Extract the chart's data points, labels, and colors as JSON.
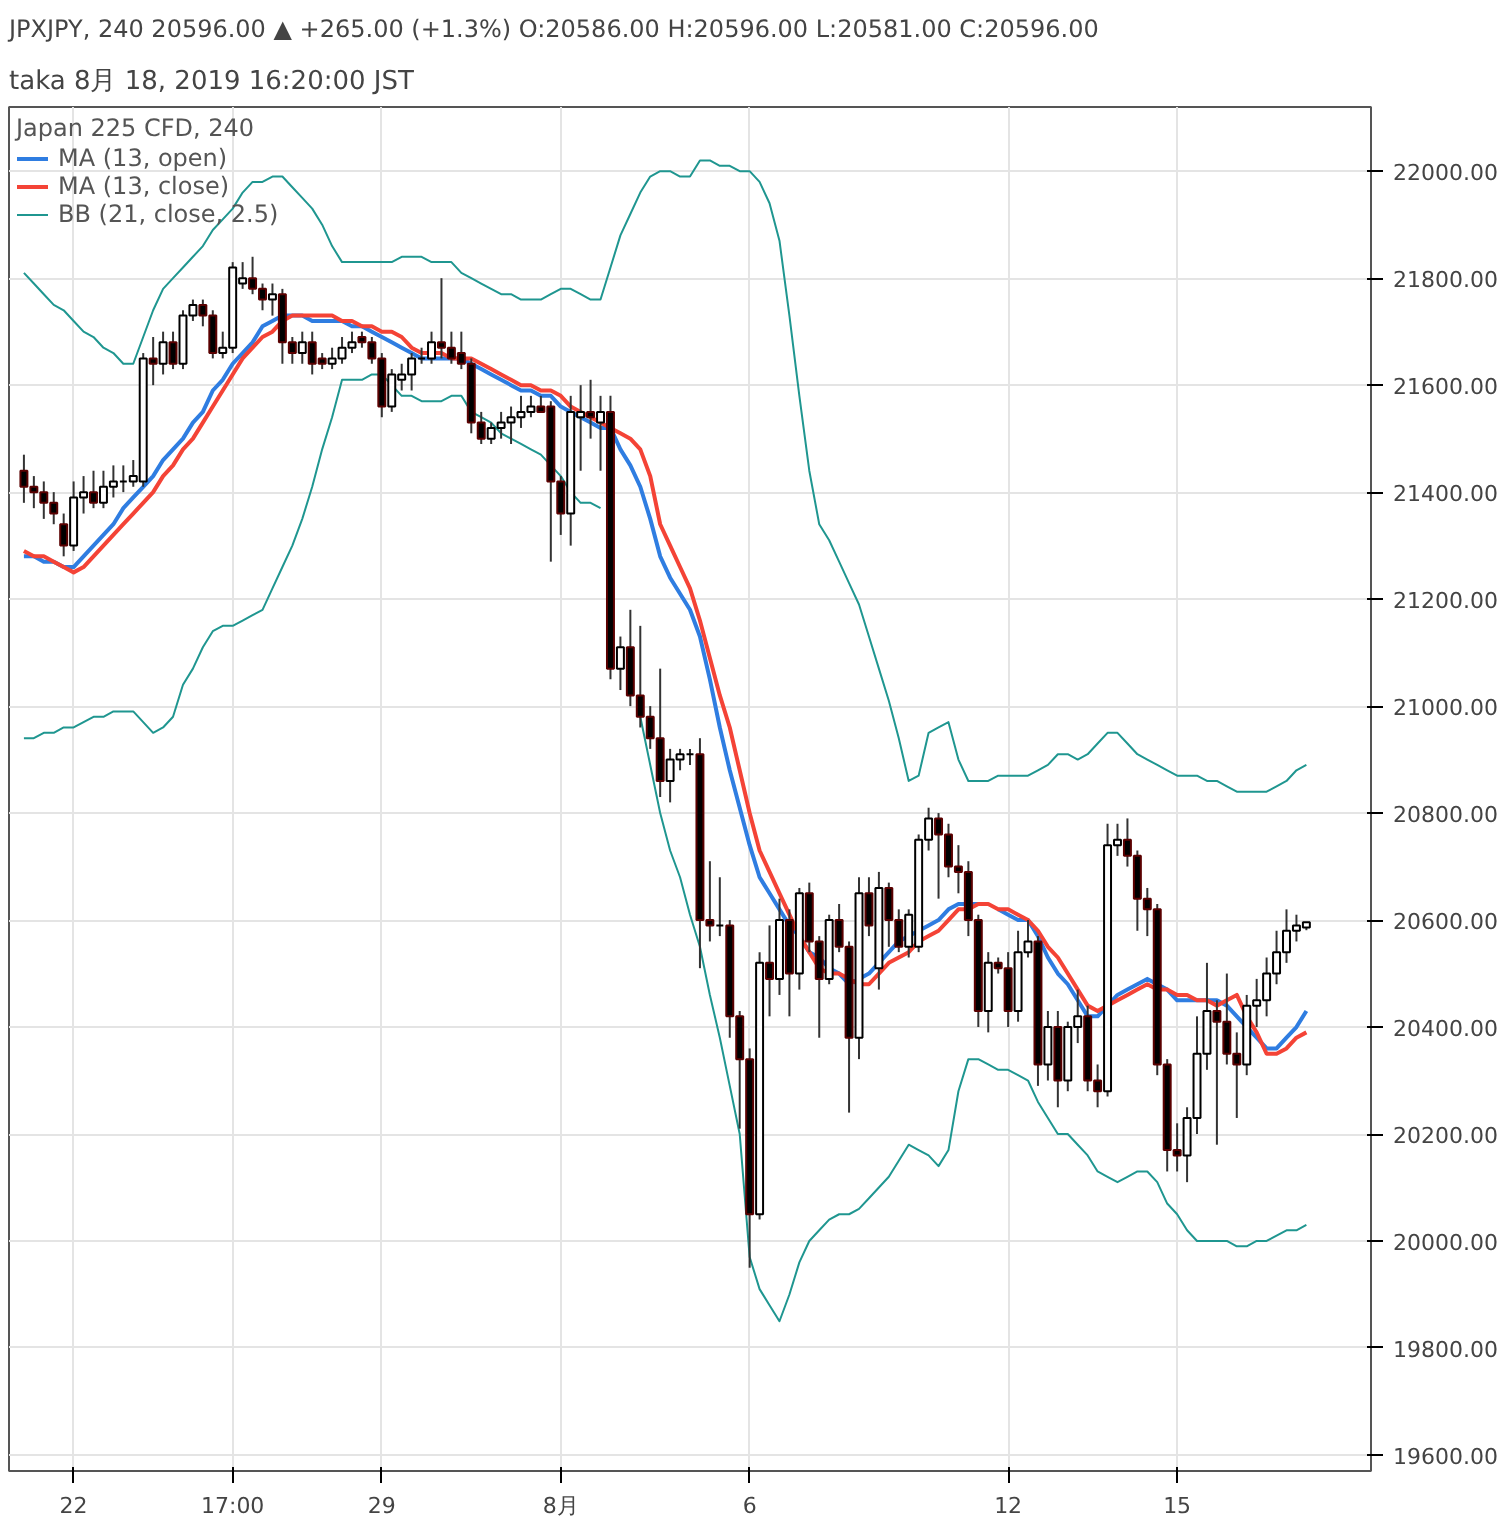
{
  "chart_data": {
    "type": "candlestick",
    "title": "taka 8月 18, 2019 16:20:00 JST",
    "subtitle": "JPXJPY, 240 20596.00 ▲ +265.00 (+1.3%) O:20586.00 H:20596.00 L:20581.00 C:20596.00",
    "legend_title": "Japan 225 CFD, 240",
    "categories": [
      null,
      null,
      null,
      null,
      null,
      "22",
      null,
      null,
      null,
      null,
      null,
      null,
      null,
      null,
      null,
      null,
      null,
      null,
      null,
      null,
      null,
      "17:00",
      null,
      null,
      null,
      null,
      null,
      null,
      null,
      null,
      null,
      null,
      null,
      null,
      null,
      null,
      "29",
      null,
      null,
      null,
      null,
      null,
      null,
      null,
      null,
      null,
      null,
      null,
      null,
      null,
      null,
      null,
      null,
      null,
      "8月",
      null,
      null,
      null,
      null,
      null,
      null,
      null,
      null,
      null,
      null,
      null,
      null,
      null,
      null,
      null,
      null,
      null,
      null,
      "6",
      null,
      null,
      null,
      null,
      null,
      null,
      null,
      null,
      null,
      null,
      null,
      null,
      null,
      null,
      null,
      null,
      null,
      null,
      null,
      null,
      null,
      null,
      null,
      null,
      null,
      "12",
      null,
      null,
      null,
      null,
      null,
      null,
      null,
      null,
      null,
      null,
      null,
      null,
      null,
      null,
      null,
      null,
      "15",
      null,
      null,
      null,
      null,
      null,
      null,
      null,
      null,
      null,
      null,
      null,
      null,
      null
    ],
    "ohlc": [
      [
        21440,
        21470,
        21380,
        21410
      ],
      [
        21410,
        21430,
        21370,
        21400
      ],
      [
        21400,
        21420,
        21350,
        21380
      ],
      [
        21380,
        21400,
        21340,
        21360
      ],
      [
        21340,
        21360,
        21280,
        21300
      ],
      [
        21300,
        21420,
        21290,
        21390
      ],
      [
        21390,
        21430,
        21360,
        21400
      ],
      [
        21400,
        21440,
        21370,
        21380
      ],
      [
        21380,
        21440,
        21370,
        21410
      ],
      [
        21410,
        21450,
        21390,
        21420
      ],
      [
        21420,
        21450,
        21400,
        21420
      ],
      [
        21420,
        21460,
        21410,
        21430
      ],
      [
        21420,
        21660,
        21410,
        21650
      ],
      [
        21650,
        21690,
        21600,
        21640
      ],
      [
        21640,
        21700,
        21620,
        21680
      ],
      [
        21680,
        21700,
        21630,
        21640
      ],
      [
        21640,
        21740,
        21630,
        21730
      ],
      [
        21730,
        21760,
        21720,
        21750
      ],
      [
        21750,
        21760,
        21710,
        21730
      ],
      [
        21730,
        21740,
        21650,
        21660
      ],
      [
        21660,
        21700,
        21650,
        21670
      ],
      [
        21670,
        21830,
        21660,
        21820
      ],
      [
        21790,
        21830,
        21780,
        21800
      ],
      [
        21800,
        21840,
        21770,
        21780
      ],
      [
        21780,
        21790,
        21740,
        21760
      ],
      [
        21760,
        21790,
        21730,
        21770
      ],
      [
        21770,
        21780,
        21640,
        21680
      ],
      [
        21680,
        21690,
        21640,
        21660
      ],
      [
        21660,
        21700,
        21640,
        21680
      ],
      [
        21680,
        21700,
        21620,
        21640
      ],
      [
        21650,
        21660,
        21630,
        21640
      ],
      [
        21640,
        21670,
        21630,
        21650
      ],
      [
        21650,
        21690,
        21640,
        21670
      ],
      [
        21670,
        21700,
        21660,
        21680
      ],
      [
        21690,
        21700,
        21670,
        21680
      ],
      [
        21680,
        21690,
        21640,
        21650
      ],
      [
        21650,
        21660,
        21540,
        21560
      ],
      [
        21560,
        21630,
        21550,
        21620
      ],
      [
        21610,
        21640,
        21590,
        21620
      ],
      [
        21620,
        21660,
        21590,
        21650
      ],
      [
        21650,
        21670,
        21640,
        21650
      ],
      [
        21650,
        21700,
        21640,
        21680
      ],
      [
        21680,
        21800,
        21650,
        21670
      ],
      [
        21670,
        21700,
        21640,
        21650
      ],
      [
        21660,
        21700,
        21630,
        21640
      ],
      [
        21640,
        21650,
        21510,
        21530
      ],
      [
        21530,
        21550,
        21490,
        21500
      ],
      [
        21500,
        21530,
        21490,
        21520
      ],
      [
        21520,
        21550,
        21500,
        21530
      ],
      [
        21530,
        21560,
        21490,
        21540
      ],
      [
        21540,
        21580,
        21520,
        21550
      ],
      [
        21550,
        21580,
        21540,
        21560
      ],
      [
        21560,
        21580,
        21550,
        21550
      ],
      [
        21560,
        21570,
        21270,
        21420
      ],
      [
        21420,
        21430,
        21320,
        21360
      ],
      [
        21360,
        21580,
        21300,
        21550
      ],
      [
        21540,
        21600,
        21440,
        21550
      ],
      [
        21550,
        21610,
        21500,
        21540
      ],
      [
        21530,
        21580,
        21440,
        21550
      ],
      [
        21550,
        21580,
        21050,
        21070
      ],
      [
        21070,
        21130,
        21030,
        21110
      ],
      [
        21110,
        21180,
        21000,
        21020
      ],
      [
        21020,
        21150,
        20960,
        20980
      ],
      [
        20980,
        21000,
        20920,
        20940
      ],
      [
        20940,
        21070,
        20830,
        20860
      ],
      [
        20860,
        20920,
        20820,
        20900
      ],
      [
        20900,
        20920,
        20880,
        20910
      ],
      [
        20910,
        20920,
        20890,
        20910
      ],
      [
        20910,
        20940,
        20510,
        20600
      ],
      [
        20600,
        20710,
        20560,
        20590
      ],
      [
        20590,
        20680,
        20570,
        20590
      ],
      [
        20590,
        20600,
        20380,
        20420
      ],
      [
        20420,
        20430,
        20210,
        20340
      ],
      [
        20340,
        20360,
        19950,
        20050
      ],
      [
        20050,
        20540,
        20040,
        20520
      ],
      [
        20520,
        20590,
        20420,
        20490
      ],
      [
        20490,
        20640,
        20460,
        20600
      ],
      [
        20600,
        20620,
        20420,
        20500
      ],
      [
        20500,
        20660,
        20470,
        20650
      ],
      [
        20650,
        20670,
        20540,
        20560
      ],
      [
        20560,
        20570,
        20380,
        20490
      ],
      [
        20490,
        20610,
        20480,
        20600
      ],
      [
        20600,
        20630,
        20540,
        20550
      ],
      [
        20550,
        20560,
        20240,
        20380
      ],
      [
        20380,
        20680,
        20340,
        20650
      ],
      [
        20650,
        20680,
        20570,
        20590
      ],
      [
        20510,
        20690,
        20470,
        20660
      ],
      [
        20660,
        20670,
        20550,
        20600
      ],
      [
        20600,
        20620,
        20540,
        20550
      ],
      [
        20550,
        20620,
        20530,
        20610
      ],
      [
        20550,
        20760,
        20540,
        20750
      ],
      [
        20750,
        20810,
        20730,
        20790
      ],
      [
        20790,
        20800,
        20640,
        20760
      ],
      [
        20760,
        20780,
        20680,
        20700
      ],
      [
        20700,
        20740,
        20650,
        20690
      ],
      [
        20690,
        20710,
        20570,
        20600
      ],
      [
        20600,
        20610,
        20400,
        20430
      ],
      [
        20430,
        20540,
        20390,
        20520
      ],
      [
        20520,
        20530,
        20500,
        20510
      ],
      [
        20510,
        20540,
        20400,
        20430
      ],
      [
        20430,
        20580,
        20410,
        20540
      ],
      [
        20540,
        20600,
        20530,
        20560
      ],
      [
        20560,
        20570,
        20290,
        20330
      ],
      [
        20330,
        20430,
        20300,
        20400
      ],
      [
        20400,
        20430,
        20250,
        20300
      ],
      [
        20300,
        20410,
        20280,
        20400
      ],
      [
        20400,
        20470,
        20370,
        20420
      ],
      [
        20420,
        20440,
        20280,
        20300
      ],
      [
        20300,
        20330,
        20250,
        20280
      ],
      [
        20280,
        20780,
        20270,
        20740
      ],
      [
        20740,
        20780,
        20720,
        20750
      ],
      [
        20750,
        20790,
        20700,
        20720
      ],
      [
        20720,
        20730,
        20580,
        20640
      ],
      [
        20640,
        20660,
        20570,
        20620
      ],
      [
        20620,
        20630,
        20310,
        20330
      ],
      [
        20330,
        20340,
        20130,
        20170
      ],
      [
        20170,
        20220,
        20130,
        20160
      ],
      [
        20160,
        20250,
        20110,
        20230
      ],
      [
        20230,
        20420,
        20200,
        20350
      ],
      [
        20350,
        20520,
        20320,
        20430
      ],
      [
        20430,
        20450,
        20180,
        20410
      ],
      [
        20410,
        20500,
        20330,
        20350
      ],
      [
        20350,
        20390,
        20230,
        20330
      ],
      [
        20330,
        20460,
        20310,
        20440
      ],
      [
        20440,
        20490,
        20400,
        20450
      ],
      [
        20450,
        20530,
        20420,
        20500
      ],
      [
        20500,
        20580,
        20480,
        20540
      ],
      [
        20540,
        20620,
        20520,
        20580
      ],
      [
        20580,
        20610,
        20560,
        20590
      ],
      [
        20586,
        20596,
        20581,
        20596
      ]
    ],
    "series": [
      {
        "name": "MA (13, open)",
        "type": "line",
        "color": "#2f7de1",
        "values": [
          21280,
          21280,
          21270,
          21270,
          21260,
          21260,
          21280,
          21300,
          21320,
          21340,
          21370,
          21390,
          21410,
          21430,
          21460,
          21480,
          21500,
          21530,
          21550,
          21590,
          21610,
          21640,
          21660,
          21680,
          21710,
          21720,
          21730,
          21730,
          21730,
          21720,
          21720,
          21720,
          21720,
          21710,
          21710,
          21700,
          21690,
          21680,
          21670,
          21660,
          21650,
          21650,
          21650,
          21650,
          21650,
          21640,
          21630,
          21620,
          21610,
          21600,
          21590,
          21590,
          21580,
          21580,
          21560,
          21550,
          21540,
          21530,
          21520,
          21520,
          21480,
          21450,
          21410,
          21350,
          21280,
          21240,
          21210,
          21180,
          21130,
          21050,
          20960,
          20880,
          20810,
          20740,
          20680,
          20650,
          20620,
          20590,
          20570,
          20540,
          20530,
          20510,
          20500,
          20480,
          20490,
          20500,
          20520,
          20540,
          20560,
          20570,
          20580,
          20590,
          20600,
          20620,
          20630,
          20630,
          20630,
          null,
          20620,
          20610,
          20600,
          20600,
          20570,
          20530,
          20500,
          20480,
          20450,
          20420,
          20420,
          20440,
          20460,
          20470,
          20480,
          20490,
          20480,
          20470,
          20450,
          20450,
          20450,
          20450,
          20450,
          20440,
          20420,
          20400,
          20380,
          20360,
          20360,
          20380,
          20400,
          20430
        ]
      },
      {
        "name": "MA (13, close)",
        "type": "line",
        "color": "#f44336",
        "values": [
          21290,
          21280,
          21280,
          21270,
          21260,
          21250,
          21260,
          21280,
          21300,
          21320,
          21340,
          21360,
          21380,
          21400,
          21430,
          21450,
          21480,
          21500,
          21530,
          21560,
          21590,
          21620,
          21650,
          21670,
          21690,
          21700,
          21720,
          21730,
          21730,
          21730,
          21730,
          21730,
          21720,
          21720,
          21710,
          21710,
          21700,
          21700,
          21690,
          21670,
          21660,
          21660,
          21660,
          21650,
          21650,
          21650,
          21640,
          21630,
          21620,
          21610,
          21600,
          21600,
          21590,
          21590,
          21580,
          21560,
          21550,
          21540,
          21530,
          21520,
          21510,
          21500,
          21480,
          21430,
          21340,
          21300,
          21260,
          21220,
          21160,
          21090,
          21020,
          20960,
          20880,
          20800,
          20730,
          20690,
          20650,
          20610,
          20570,
          20540,
          20510,
          20500,
          20500,
          20490,
          20480,
          20480,
          20500,
          20520,
          20530,
          20540,
          20560,
          20570,
          20580,
          20600,
          20620,
          20620,
          20630,
          20630,
          20620,
          20620,
          20610,
          20600,
          20580,
          20550,
          20530,
          20500,
          20470,
          20440,
          20430,
          20440,
          20450,
          20460,
          20470,
          20480,
          20470,
          20470,
          20460,
          20460,
          20450,
          20450,
          20440,
          20450,
          20460,
          20420,
          20390,
          20350,
          20350,
          20360,
          20380,
          20390
        ]
      },
      {
        "name": "BB (21, close, 2.5)",
        "type": "line",
        "color": "#1f9690",
        "values": [
          21810,
          21790,
          21770,
          21750,
          21740,
          21720,
          21700,
          21690,
          21670,
          21660,
          21640,
          21640,
          21690,
          21740,
          21780,
          21800,
          21820,
          21840,
          21860,
          21890,
          21910,
          21930,
          21960,
          21980,
          21980,
          21990,
          21990,
          21970,
          21950,
          21930,
          21900,
          21860,
          21830,
          21830,
          21830,
          21830,
          21830,
          21830,
          21840,
          21840,
          21840,
          21830,
          21830,
          21830,
          21810,
          21800,
          21790,
          21780,
          21770,
          21770,
          21760,
          21760,
          21760,
          21770,
          21780,
          21780,
          21770,
          21760,
          21760,
          21820,
          21880,
          21920,
          21960,
          21990,
          22000,
          22000,
          21990,
          21990,
          22020,
          22020,
          22010,
          22010,
          22000,
          22000,
          21980,
          21940,
          21870,
          21730,
          21580,
          21440,
          21340,
          21310,
          21270,
          21230,
          21190,
          21130,
          21070,
          21010,
          20940,
          20860,
          20870,
          20950,
          20960,
          20970,
          20900,
          20860,
          20860,
          20860,
          20870,
          20870,
          20870,
          20870,
          20880,
          20890,
          20910,
          20910,
          20900,
          20910,
          20930,
          20950,
          20950,
          20930,
          20910,
          20900,
          20890,
          20880,
          20870,
          20870,
          20870,
          20860,
          20860,
          20850,
          20840,
          20840,
          20840,
          20840,
          20850,
          20860,
          20880,
          20890
        ]
      },
      {
        "type": "line",
        "color": "#1f9690",
        "values": [
          20940,
          20940,
          20950,
          20950,
          20960,
          20960,
          20970,
          20980,
          20980,
          20990,
          20990,
          20990,
          20970,
          20950,
          20960,
          20980,
          21040,
          21070,
          21110,
          21140,
          21150,
          21150,
          21160,
          21170,
          21180,
          21220,
          21260,
          21300,
          21350,
          21410,
          21480,
          21540,
          21610,
          21610,
          21610,
          21620,
          21620,
          21600,
          21580,
          21580,
          21570,
          21570,
          21570,
          21580,
          21580,
          21550,
          21540,
          21530,
          21510,
          21500,
          21490,
          21480,
          21470,
          21450,
          21430,
          21400,
          21380,
          21380,
          21370,
          null,
          null,
          null,
          20980,
          20890,
          20800,
          20730,
          20680,
          20610,
          20550,
          20460,
          20380,
          20290,
          20200,
          19970,
          19910,
          19880,
          19850,
          19900,
          19960,
          20000,
          20020,
          20040,
          20050,
          20050,
          20060,
          20080,
          20100,
          20120,
          20150,
          20180,
          20170,
          20160,
          20140,
          20170,
          20280,
          20340,
          20340,
          20330,
          20320,
          20320,
          20310,
          20300,
          20260,
          20230,
          20200,
          20200,
          20180,
          20160,
          20130,
          20120,
          20110,
          20120,
          20130,
          20130,
          20110,
          20070,
          20050,
          20020,
          20000,
          20000,
          20000,
          20000,
          19990,
          19990,
          20000,
          20000,
          20010,
          20020,
          20020,
          20030
        ]
      }
    ],
    "ylim": [
      19570,
      22120
    ],
    "yticks": [
      {
        "value": 19600,
        "label": "19600.00"
      },
      {
        "value": 19800,
        "label": "19800.00"
      },
      {
        "value": 20000,
        "label": "20000.00"
      },
      {
        "value": 20200,
        "label": "20200.00"
      },
      {
        "value": 20400,
        "label": "20400.00"
      },
      {
        "value": 20600,
        "label": "20600.00"
      },
      {
        "value": 20800,
        "label": "20800.00"
      },
      {
        "value": 21000,
        "label": "21000.00"
      },
      {
        "value": 21200,
        "label": "21200.00"
      },
      {
        "value": 21400,
        "label": "21400.00"
      },
      {
        "value": 21600,
        "label": "21600.00"
      },
      {
        "value": 21800,
        "label": "21800.00"
      },
      {
        "value": 22000,
        "label": "22000.00"
      }
    ],
    "grid": true,
    "legend": "top left"
  }
}
